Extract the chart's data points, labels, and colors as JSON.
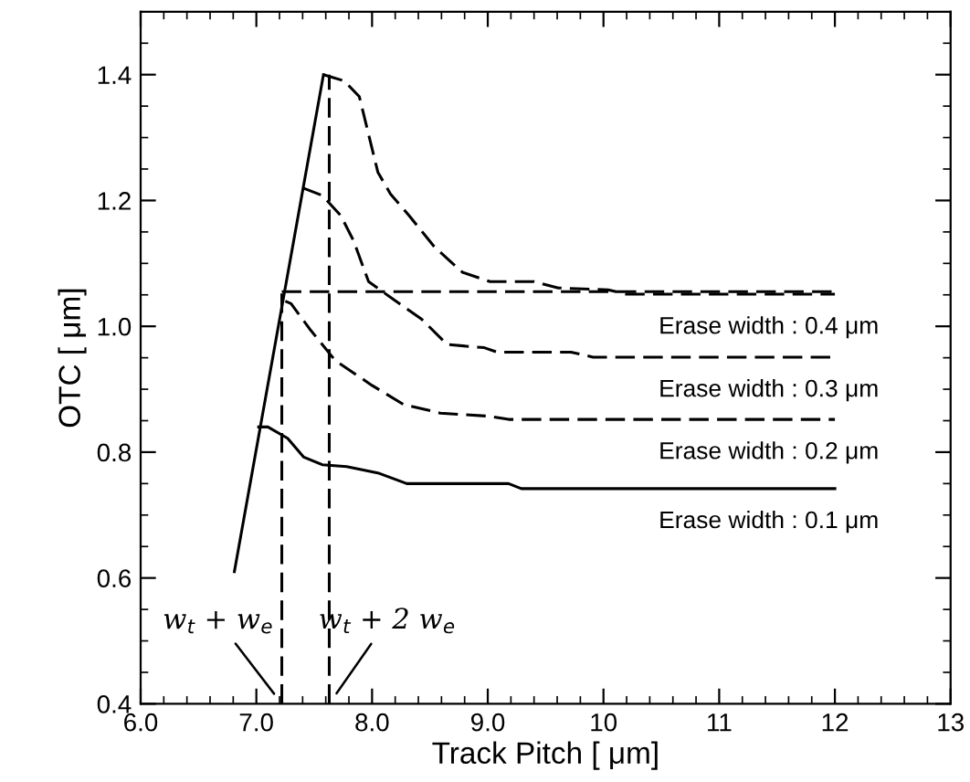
{
  "chart_data": {
    "type": "line",
    "xlabel": "Track Pitch [ μm]",
    "ylabel": "OTC [ μm]",
    "xlim": [
      6,
      13
    ],
    "ylim": [
      0.4,
      1.5
    ],
    "xticks": [
      {
        "value": 6,
        "label": "6.0"
      },
      {
        "value": 7,
        "label": "7.0"
      },
      {
        "value": 8,
        "label": "8.0"
      },
      {
        "value": 9,
        "label": "9.0"
      },
      10,
      11,
      12,
      13
    ],
    "yticks": [
      {
        "value": 0.4,
        "label": "0.4"
      },
      {
        "value": 0.6,
        "label": "0.6"
      },
      {
        "value": 0.8,
        "label": "0.8"
      },
      {
        "value": 1.0,
        "label": "1.0"
      },
      {
        "value": 1.2,
        "label": "1.2"
      },
      {
        "value": 1.4,
        "label": "1.4"
      }
    ],
    "grid": false,
    "legend": false,
    "marker": "none",
    "series": [
      {
        "color": "#000000",
        "line_style": "solid",
        "x": [
          6.81,
          7.58
        ],
        "values": [
          0.61,
          1.4
        ]
      },
      {
        "name": "Erase width : 0.4 μm",
        "color": "#000000",
        "line_style": "dashed",
        "x": [
          7.58,
          7.76,
          7.89,
          8.05,
          8.16,
          8.32,
          8.54,
          8.78,
          9.02,
          9.4,
          9.61,
          10.04,
          10.2,
          12.0
        ],
        "values": [
          1.4,
          1.39,
          1.365,
          1.245,
          1.21,
          1.176,
          1.126,
          1.086,
          1.071,
          1.071,
          1.061,
          1.058,
          1.051,
          1.051
        ]
      },
      {
        "name": "Erase width : 0.3 μm",
        "color": "#000000",
        "line_style": "dashed",
        "x": [
          7.4,
          7.57,
          7.73,
          7.84,
          7.97,
          8.16,
          8.43,
          8.65,
          8.97,
          9.08,
          9.72,
          9.91,
          12.0
        ],
        "values": [
          1.22,
          1.208,
          1.176,
          1.136,
          1.071,
          1.046,
          1.011,
          0.971,
          0.966,
          0.959,
          0.959,
          0.951,
          0.951
        ]
      },
      {
        "name": "Erase width : 0.2 μm",
        "color": "#000000",
        "line_style": "dashed",
        "x": [
          7.25,
          7.3,
          7.46,
          7.68,
          8.0,
          8.27,
          8.59,
          9.02,
          9.18,
          12.0
        ],
        "values": [
          1.04,
          1.036,
          0.996,
          0.946,
          0.906,
          0.876,
          0.862,
          0.857,
          0.852,
          0.852
        ]
      },
      {
        "name": "Erase width : 0.1 μm",
        "color": "#000000",
        "line_style": "solid",
        "x": [
          7.02,
          7.1,
          7.27,
          7.41,
          7.57,
          7.78,
          8.05,
          8.3,
          9.18,
          9.29,
          12.0
        ],
        "values": [
          0.84,
          0.84,
          0.822,
          0.792,
          0.78,
          0.777,
          0.767,
          0.75,
          0.75,
          0.742,
          0.742
        ]
      },
      {
        "color": "#000000",
        "line_style": "dashed",
        "x": [
          7.22,
          7.22
        ],
        "values": [
          0.4,
          1.055
        ]
      },
      {
        "color": "#000000",
        "line_style": "dashed",
        "x": [
          7.63,
          7.63
        ],
        "values": [
          0.4,
          1.4
        ]
      },
      {
        "color": "#000000",
        "line_style": "dashed",
        "x": [
          7.22,
          12.0
        ],
        "values": [
          1.055,
          1.055
        ]
      }
    ],
    "annotations": [
      {
        "text": "w$_{t}$ + w$_{e}$",
        "x": 7.22,
        "y": 0.4
      },
      {
        "text": "w$_{t}$ + 2 w$_{e}$",
        "x": 7.63,
        "y": 0.4
      }
    ]
  }
}
